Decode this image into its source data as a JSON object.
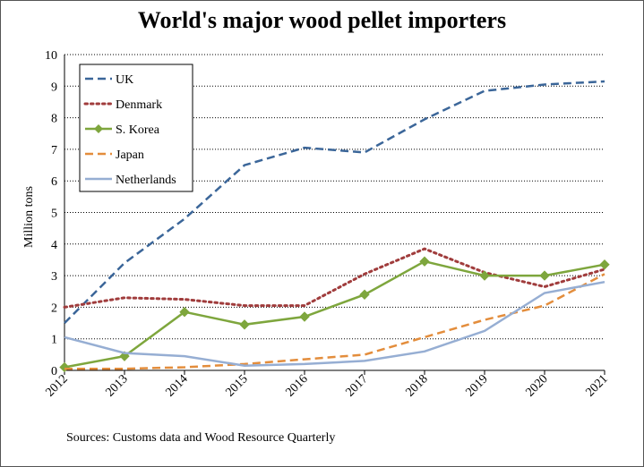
{
  "chart_data": {
    "type": "line",
    "title": "World's major wood pellet importers",
    "xlabel": "",
    "ylabel": "Million tons",
    "source": "Sources: Customs data and Wood Resource Quarterly",
    "x": [
      "2012",
      "2013",
      "2014",
      "2015",
      "2016",
      "2017",
      "2018",
      "2019",
      "2020",
      "2021"
    ],
    "ylim": [
      0,
      10
    ],
    "yticks": [
      "0",
      "1",
      "2",
      "3",
      "4",
      "5",
      "6",
      "7",
      "8",
      "9",
      "10"
    ],
    "grid": "horizontal dotted",
    "legend_position": "top-left",
    "series": [
      {
        "name": "UK",
        "color": "#3b6699",
        "style": "dashed",
        "marker": "none",
        "values": [
          1.5,
          3.4,
          4.8,
          6.5,
          7.05,
          6.9,
          7.95,
          8.85,
          9.05,
          9.15
        ]
      },
      {
        "name": "Denmark",
        "color": "#a03c3c",
        "style": "dotted",
        "marker": "none",
        "values": [
          2.0,
          2.3,
          2.25,
          2.05,
          2.05,
          3.05,
          3.85,
          3.1,
          2.65,
          3.2
        ]
      },
      {
        "name": "S. Korea",
        "color": "#7ea63d",
        "style": "solid",
        "marker": "diamond",
        "values": [
          0.1,
          0.45,
          1.85,
          1.45,
          1.7,
          2.4,
          3.45,
          3.0,
          3.0,
          3.35
        ]
      },
      {
        "name": "Japan",
        "color": "#e38d3c",
        "style": "dashed",
        "marker": "none",
        "values": [
          0.05,
          0.05,
          0.1,
          0.2,
          0.35,
          0.5,
          1.05,
          1.6,
          2.05,
          3.05
        ]
      },
      {
        "name": "Netherlands",
        "color": "#96aed3",
        "style": "solid",
        "marker": "none",
        "values": [
          1.05,
          0.55,
          0.45,
          0.15,
          0.2,
          0.3,
          0.6,
          1.25,
          2.45,
          2.8
        ]
      }
    ]
  }
}
